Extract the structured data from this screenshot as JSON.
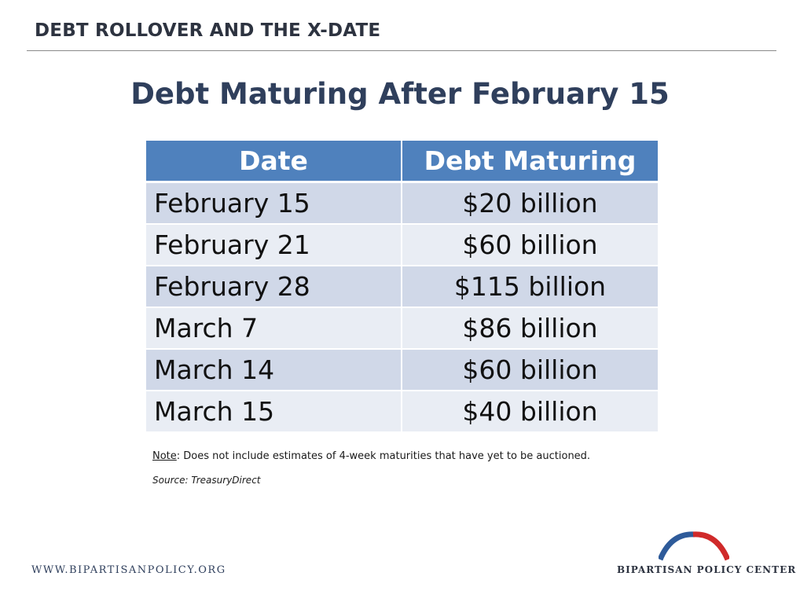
{
  "header": {
    "section_title": "DEBT ROLLOVER AND THE X-DATE"
  },
  "title": "Debt Maturing After February 15",
  "table": {
    "columns": [
      "Date",
      "Debt Maturing"
    ],
    "rows": [
      [
        "February 15",
        "$20 billion"
      ],
      [
        "February 21",
        "$60 billion"
      ],
      [
        "February 28",
        "$115 billion"
      ],
      [
        "March 7",
        "$86 billion"
      ],
      [
        "March 14",
        "$60 billion"
      ],
      [
        "March 15",
        "$40 billion"
      ]
    ]
  },
  "note": {
    "label": "Note",
    "text": ": Does not include estimates of 4-week maturities that have yet to be auctioned."
  },
  "source": "Source: TreasuryDirect",
  "footer": {
    "website": "WWW.BIPARTISANPOLICY.ORG",
    "organization": "BIPARTISAN POLICY CENTER",
    "logo_icon": "red-blue-arcs-logo-icon"
  },
  "colors": {
    "header_fill": "#4f81bd",
    "row_dark": "#d0d8e8",
    "row_light": "#e9edf4",
    "title": "#2f3f5c",
    "logo_blue": "#2e5b9a",
    "logo_red": "#d02a2a"
  }
}
